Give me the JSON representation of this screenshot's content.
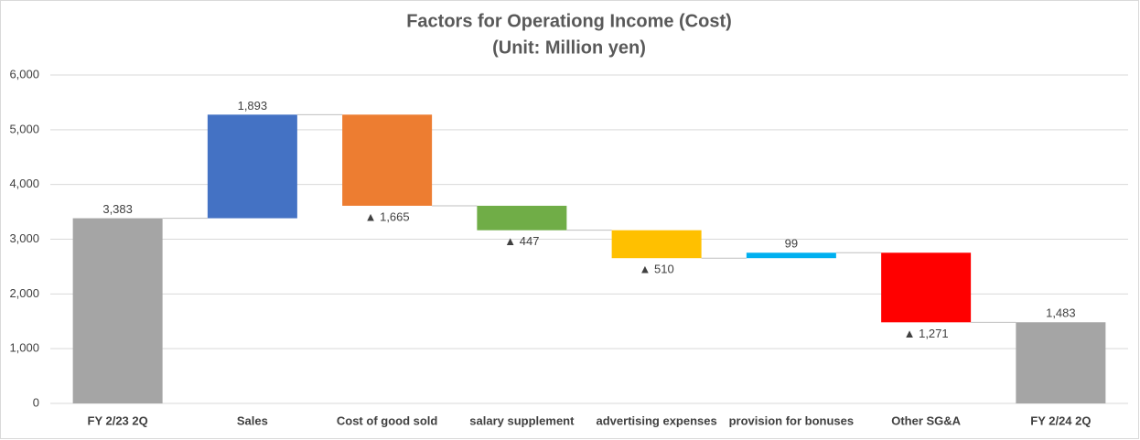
{
  "chart_data": {
    "type": "waterfall",
    "title": "Factors for Operationg Income (Cost)",
    "subtitle": "(Unit: Million yen)",
    "categories": [
      "FY 2/23 2Q",
      "Sales",
      "Cost of good sold",
      "salary supplement",
      "advertising expenses",
      "provision for bonuses",
      "Other SG&A",
      "FY 2/24 2Q"
    ],
    "values": [
      3383,
      1893,
      -1665,
      -447,
      -510,
      99,
      -1271,
      1483
    ],
    "value_labels": [
      "3,383",
      "1,893",
      "▲ 1,665",
      "▲ 447",
      "▲ 510",
      "99",
      "▲ 1,271",
      "1,483"
    ],
    "measure": [
      "absolute",
      "relative",
      "relative",
      "relative",
      "relative",
      "relative",
      "relative",
      "absolute"
    ],
    "colors": [
      "#a5a5a5",
      "#4472c4",
      "#ed7d31",
      "#70ad47",
      "#ffc000",
      "#00b0f0",
      "#ff0000",
      "#a5a5a5"
    ],
    "ylim": [
      0,
      6000
    ],
    "yticks": [
      0,
      {
        "value": 1000,
        "label": "1,000"
      },
      {
        "value": 2000,
        "label": "2,000"
      },
      {
        "value": 3000,
        "label": "3,000"
      },
      {
        "value": 4000,
        "label": "4,000"
      },
      {
        "value": 5000,
        "label": "5,000"
      },
      {
        "value": 6000,
        "label": "6,000"
      }
    ],
    "grid": true
  }
}
